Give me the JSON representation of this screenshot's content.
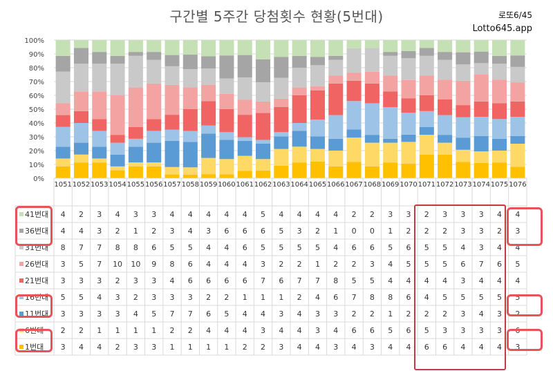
{
  "title": "구간별 5주간 당첨횟수 현황(5번대)",
  "brand": {
    "line1": "로또6/45",
    "line2": "Lotto645.app"
  },
  "chart_data": {
    "type": "bar",
    "stacked": "percent",
    "yaxis_ticks": [
      "0%",
      "10%",
      "20%",
      "30%",
      "40%",
      "50%",
      "60%",
      "70%",
      "80%",
      "90%",
      "100%"
    ],
    "ylim": [
      0,
      100
    ],
    "grid": true,
    "categories": [
      "1051",
      "1052",
      "1053",
      "1054",
      "1055",
      "1056",
      "1057",
      "1058",
      "1059",
      "1060",
      "1061",
      "1062",
      "1063",
      "1064",
      "1065",
      "1066",
      "1067",
      "1068",
      "1069",
      "1070",
      "1071",
      "1072",
      "1073",
      "1074",
      "1075",
      "1076"
    ],
    "series": [
      {
        "name": "41번대",
        "color": "#c5e0b4",
        "values": [
          4,
          2,
          3,
          4,
          3,
          3,
          4,
          4,
          4,
          4,
          4,
          5,
          4,
          4,
          4,
          4,
          2,
          2,
          3,
          3,
          2,
          3,
          3,
          3,
          4,
          4
        ]
      },
      {
        "name": "36번대",
        "color": "#a5a5a5",
        "values": [
          4,
          4,
          3,
          2,
          1,
          2,
          3,
          4,
          3,
          6,
          6,
          6,
          5,
          3,
          2,
          1,
          0,
          0,
          1,
          2,
          2,
          2,
          3,
          3,
          2,
          3
        ]
      },
      {
        "name": "31번대",
        "color": "#c9c9c9",
        "values": [
          8,
          7,
          7,
          8,
          8,
          6,
          5,
          5,
          4,
          4,
          6,
          5,
          5,
          5,
          5,
          4,
          6,
          6,
          5,
          6,
          5,
          5,
          4,
          3,
          4,
          4
        ]
      },
      {
        "name": "26번대",
        "color": "#f4a3a3",
        "values": [
          3,
          5,
          7,
          10,
          10,
          9,
          8,
          6,
          4,
          4,
          4,
          3,
          2,
          2,
          1,
          2,
          2,
          3,
          4,
          5,
          5,
          5,
          6,
          7,
          6,
          5
        ]
      },
      {
        "name": "21번대",
        "color": "#f06464",
        "values": [
          3,
          3,
          3,
          2,
          3,
          3,
          4,
          6,
          6,
          6,
          6,
          7,
          6,
          7,
          7,
          8,
          5,
          5,
          4,
          4,
          4,
          4,
          3,
          4,
          4,
          4
        ]
      },
      {
        "name": "16번대",
        "color": "#9dc3e6",
        "values": [
          5,
          5,
          4,
          3,
          2,
          3,
          3,
          3,
          2,
          2,
          1,
          1,
          1,
          2,
          4,
          6,
          7,
          8,
          8,
          6,
          4,
          5,
          5,
          5,
          5,
          5
        ]
      },
      {
        "name": "11번대",
        "color": "#5b9bd5",
        "values": [
          3,
          3,
          3,
          3,
          4,
          5,
          7,
          7,
          6,
          5,
          4,
          4,
          3,
          4,
          3,
          3,
          2,
          2,
          1,
          2,
          2,
          2,
          3,
          4,
          3,
          2
        ]
      },
      {
        "name": "6번대",
        "color": "#ffd966",
        "values": [
          2,
          2,
          1,
          1,
          1,
          1,
          2,
          2,
          4,
          4,
          4,
          3,
          4,
          4,
          3,
          4,
          6,
          6,
          5,
          6,
          5,
          3,
          3,
          3,
          3,
          6
        ]
      },
      {
        "name": "1번대",
        "color": "#ffc000",
        "values": [
          3,
          4,
          4,
          2,
          3,
          3,
          1,
          1,
          1,
          1,
          2,
          2,
          3,
          4,
          4,
          3,
          4,
          3,
          4,
          4,
          6,
          6,
          4,
          4,
          4,
          3
        ]
      }
    ]
  }
}
